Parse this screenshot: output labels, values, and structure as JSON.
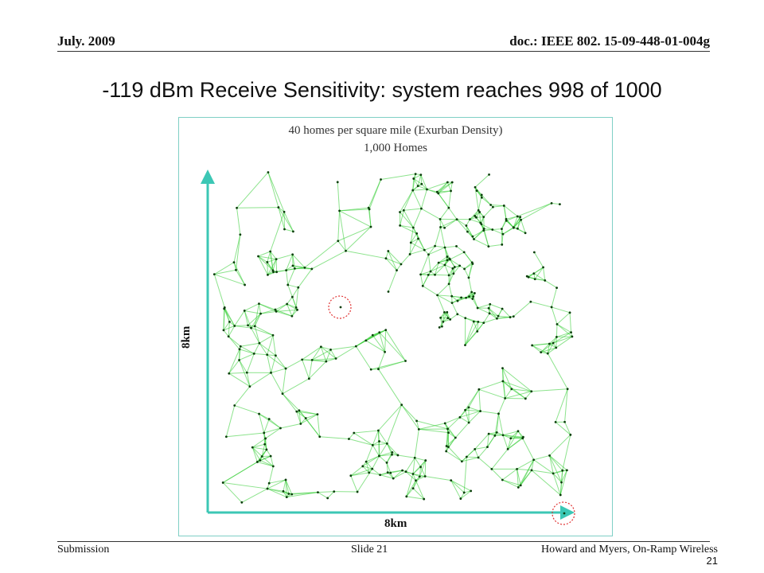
{
  "header": {
    "date": "July. 2009",
    "doc_id": "doc.: IEEE 802. 15-09-448-01-004g"
  },
  "slide_title": "-119 dBm Receive Sensitivity: system reaches 998 of 1000",
  "figure": {
    "caption_line1": "40 homes per square mile (Exurban Density)",
    "caption_line2": "1,000 Homes",
    "y_axis_label": "8km",
    "x_axis_label": "8km",
    "total_homes": 1000,
    "reached_homes": 998,
    "colors": {
      "link": "#2ecc2e",
      "node": "#0b3d0b",
      "axis": "#3cc7b5",
      "unreached_marker": "#e03030",
      "frame": "#7fcfc5"
    }
  },
  "footer": {
    "left": "Submission",
    "center": "Slide 21",
    "right": "Howard and Myers, On-Ramp Wireless",
    "page_number": "21"
  }
}
